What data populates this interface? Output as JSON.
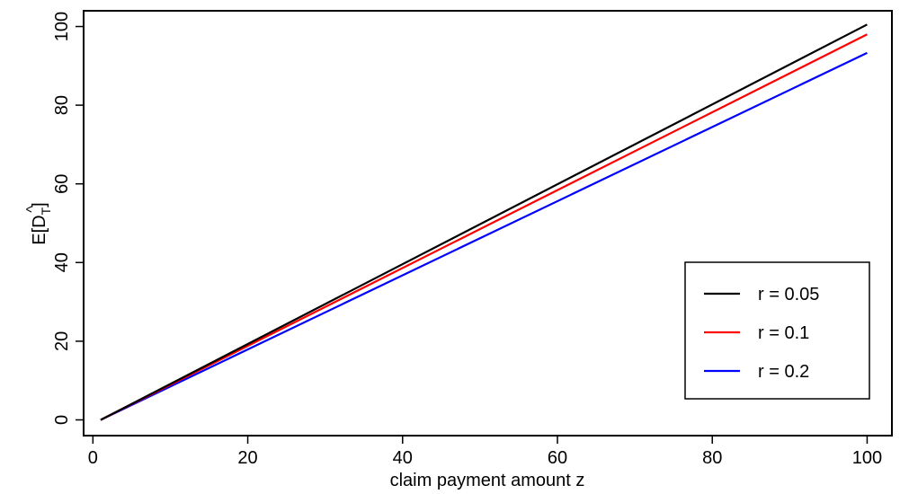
{
  "chart_data": {
    "type": "line",
    "xlabel": "claim payment amount z",
    "ylabel": "E[D̂_T]",
    "xlim": [
      -1.2,
      103.2
    ],
    "ylim": [
      -4,
      104
    ],
    "x_ticks": [
      0,
      20,
      40,
      60,
      80,
      100
    ],
    "y_ticks": [
      0,
      20,
      40,
      60,
      80,
      100
    ],
    "grid": false,
    "legend_position": "bottom-right",
    "series": [
      {
        "name": "r = 0.05",
        "color": "#000000",
        "x": [
          1,
          100
        ],
        "y": [
          0,
          100.5
        ]
      },
      {
        "name": "r = 0.1",
        "color": "#ff0000",
        "x": [
          1,
          100
        ],
        "y": [
          0,
          98
        ]
      },
      {
        "name": "r = 0.2",
        "color": "#0000ff",
        "x": [
          1,
          100
        ],
        "y": [
          0,
          93.3
        ]
      }
    ]
  }
}
